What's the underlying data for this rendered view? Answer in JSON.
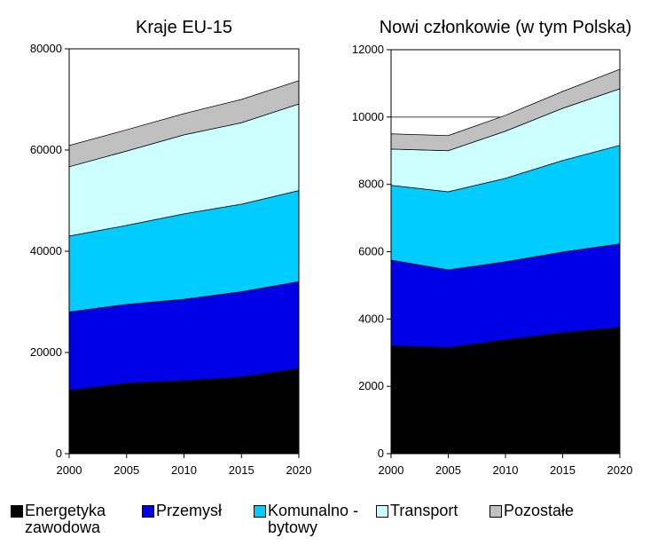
{
  "chart_data": [
    {
      "type": "stacked_area",
      "title": "Kraje EU-15",
      "x": [
        2000,
        2005,
        2010,
        2015,
        2020
      ],
      "xlim": [
        2000,
        2020
      ],
      "xticks": [
        2000,
        2005,
        2010,
        2015,
        2020
      ],
      "ylim": [
        0,
        80000
      ],
      "yticks": [
        0,
        20000,
        40000,
        60000,
        80000
      ],
      "grid": true,
      "series": [
        {
          "name": "Energetyka zawodowa",
          "color": "#000000",
          "values": [
            12500,
            13900,
            14400,
            15100,
            16800
          ]
        },
        {
          "name": "Przemysł",
          "color": "#0000e6",
          "values": [
            15500,
            15600,
            16100,
            16900,
            17200
          ]
        },
        {
          "name": "Komunalno -bytowy",
          "color": "#00ccff",
          "values": [
            15000,
            15600,
            16900,
            17300,
            18000
          ]
        },
        {
          "name": "Transport",
          "color": "#ccffff",
          "values": [
            13700,
            14700,
            15600,
            16100,
            17100
          ]
        },
        {
          "name": "Pozostałe",
          "color": "#c0c0c0",
          "values": [
            4200,
            4200,
            4200,
            4600,
            4600
          ]
        }
      ]
    },
    {
      "type": "stacked_area",
      "title": "Nowi członkowie (w tym Polska)",
      "x": [
        2000,
        2005,
        2010,
        2015,
        2020
      ],
      "xlim": [
        2000,
        2020
      ],
      "xticks": [
        2000,
        2005,
        2010,
        2015,
        2020
      ],
      "ylim": [
        0,
        12000
      ],
      "yticks": [
        0,
        2000,
        4000,
        6000,
        8000,
        10000,
        12000
      ],
      "grid": true,
      "series": [
        {
          "name": "Energetyka zawodowa",
          "color": "#000000",
          "values": [
            3200,
            3150,
            3380,
            3590,
            3750
          ]
        },
        {
          "name": "Przemysł",
          "color": "#0000e6",
          "values": [
            2550,
            2310,
            2320,
            2400,
            2480
          ]
        },
        {
          "name": "Komunalno -bytowy",
          "color": "#00ccff",
          "values": [
            2220,
            2320,
            2480,
            2720,
            2930
          ]
        },
        {
          "name": "Transport",
          "color": "#ccffff",
          "values": [
            1080,
            1220,
            1400,
            1550,
            1680
          ]
        },
        {
          "name": "Pozostałe",
          "color": "#c0c0c0",
          "values": [
            450,
            450,
            470,
            500,
            580
          ]
        }
      ]
    }
  ]
}
